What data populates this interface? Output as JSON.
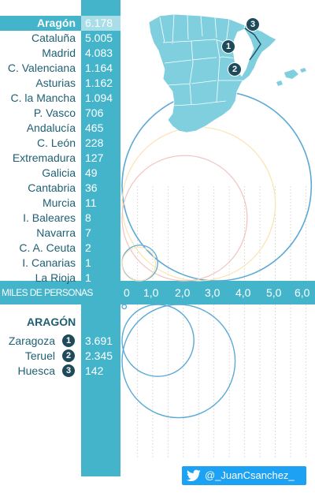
{
  "chart_data": {
    "type": "circle-area",
    "axis_title": "MILES DE PERSONAS",
    "x_ticks": [
      "0",
      "1,0",
      "2,0",
      "3,0",
      "4,0",
      "5,0",
      "6,0"
    ],
    "xlim": [
      0,
      6.0
    ],
    "highlighted": "Aragón",
    "regions": [
      {
        "name": "Aragón",
        "label": "6.178",
        "value": 6.178
      },
      {
        "name": "Cataluña",
        "label": "5.005",
        "value": 5.005
      },
      {
        "name": "Madrid",
        "label": "4.083",
        "value": 4.083
      },
      {
        "name": "C. Valenciana",
        "label": "1.164",
        "value": 1.164
      },
      {
        "name": "Asturias",
        "label": "1.162",
        "value": 1.162
      },
      {
        "name": "C. la Mancha",
        "label": "1.094",
        "value": 1.094
      },
      {
        "name": "P. Vasco",
        "label": "706",
        "value": 0.706
      },
      {
        "name": "Andalucía",
        "label": "465",
        "value": 0.465
      },
      {
        "name": "C. León",
        "label": "228",
        "value": 0.228
      },
      {
        "name": "Extremadura",
        "label": "127",
        "value": 0.127
      },
      {
        "name": "Galicia",
        "label": "49",
        "value": 0.049
      },
      {
        "name": "Cantabria",
        "label": "36",
        "value": 0.036
      },
      {
        "name": "Murcia",
        "label": "11",
        "value": 0.011
      },
      {
        "name": "I. Baleares",
        "label": "8",
        "value": 0.008
      },
      {
        "name": "Navarra",
        "label": "7",
        "value": 0.007
      },
      {
        "name": "C. A. Ceuta",
        "label": "2",
        "value": 0.002
      },
      {
        "name": "I. Canarias",
        "label": "1",
        "value": 0.001
      },
      {
        "name": "La Rioja",
        "label": "1",
        "value": 0.001
      }
    ],
    "circle_colors": {
      "top": [
        "#5aa9d6",
        "#fbe3b0",
        "#f3c1c1",
        "#cfe6f2"
      ],
      "bottom": "#5aa9d6"
    },
    "detail": {
      "title": "ARAGÓN",
      "provinces": [
        {
          "name": "Zaragoza",
          "badge": "1",
          "label": "3.691",
          "value": 3.691
        },
        {
          "name": "Teruel",
          "badge": "2",
          "label": "2.345",
          "value": 2.345
        },
        {
          "name": "Huesca",
          "badge": "3",
          "label": "142",
          "value": 0.142
        }
      ]
    }
  },
  "colors": {
    "accent": "#44b4cb",
    "label": "#1e5f74",
    "badge": "#1e4a5c",
    "map_fill": "#7fcfdf"
  },
  "twitter": {
    "icon": "twitter-bird-icon",
    "handle": "@_JuanCsanchez_"
  },
  "map": {
    "badges": [
      "1",
      "2",
      "3"
    ]
  }
}
